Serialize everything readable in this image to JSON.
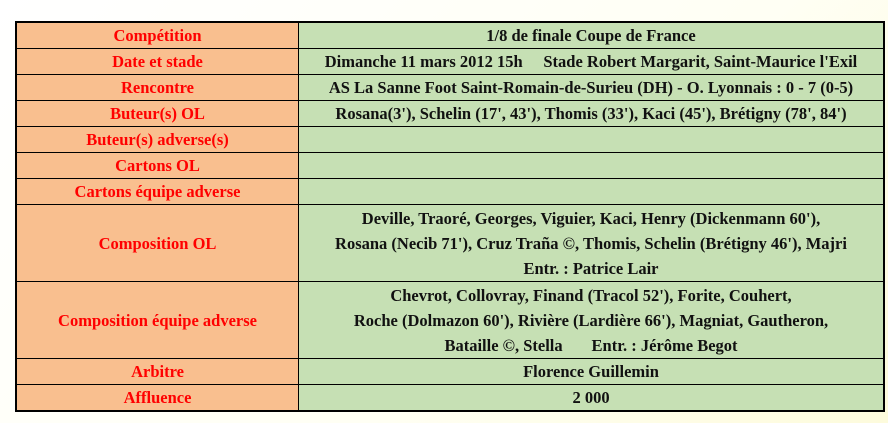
{
  "rows": [
    {
      "label": "Compétition",
      "value": [
        "1/8 de finale Coupe de France"
      ]
    },
    {
      "label": "Date et stade",
      "value": [
        "Dimanche 11 mars 2012 15h     Stade Robert Margarit, Saint-Maurice l'Exil"
      ]
    },
    {
      "label": "Rencontre",
      "value": [
        "AS La Sanne Foot Saint-Romain-de-Surieu (DH) - O. Lyonnais : 0 - 7 (0-5)"
      ]
    },
    {
      "label": "Buteur(s) OL",
      "value": [
        "Rosana(3'), Schelin (17', 43'), Thomis (33'), Kaci (45'), Brétigny (78', 84')"
      ]
    },
    {
      "label": "Buteur(s) adverse(s)",
      "value": [
        ""
      ]
    },
    {
      "label": "Cartons OL",
      "value": [
        ""
      ]
    },
    {
      "label": "Cartons équipe adverse",
      "value": [
        ""
      ]
    },
    {
      "label": "Composition OL",
      "value": [
        "Deville, Traoré, Georges, Viguier, Kaci, Henry (Dickenmann 60'),",
        "Rosana (Necib 71'), Cruz Traña ©, Thomis, Schelin (Brétigny 46'), Majri",
        "Entr. : Patrice Lair"
      ]
    },
    {
      "label": "Composition équipe adverse",
      "value": [
        "Chevrot, Collovray, Finand (Tracol 52'), Forite, Couhert,",
        "Roche (Dolmazon 60'), Rivière (Lardière 66'), Magniat, Gautheron,",
        "Bataille ©, Stella       Entr. : Jérôme Begot"
      ]
    },
    {
      "label": "Arbitre",
      "value": [
        "Florence Guillemin"
      ]
    },
    {
      "label": "Affluence",
      "value": [
        "2 000"
      ]
    }
  ]
}
